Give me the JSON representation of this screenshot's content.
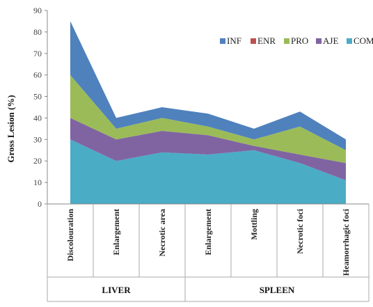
{
  "chart_data": {
    "type": "area",
    "stacked": true,
    "title": "",
    "xlabel": "",
    "ylabel": "Gross Lesion (%)",
    "ylim": [
      0,
      90
    ],
    "yticks": [
      0,
      10,
      20,
      30,
      40,
      50,
      60,
      70,
      80,
      90
    ],
    "grid": false,
    "legend_position": "top-right",
    "categories": [
      "Discolouration",
      "Enlargement",
      "Necrotic area",
      "Enlargement",
      "Mottling",
      "Necrotic foci",
      "Heamorrhagic foci"
    ],
    "groups": [
      {
        "label": "LIVER",
        "categories": [
          0,
          1,
          2
        ]
      },
      {
        "label": "SPLEEN",
        "categories": [
          3,
          4,
          5,
          6
        ]
      }
    ],
    "series": [
      {
        "name": "COM",
        "color": "#4bacc6",
        "values": [
          30,
          20,
          24,
          23,
          25,
          19,
          11
        ]
      },
      {
        "name": "AJE",
        "color": "#8064a2",
        "values": [
          10,
          10,
          10,
          9,
          2,
          4,
          8
        ]
      },
      {
        "name": "ENR",
        "color": "#c0504d",
        "values": [
          0,
          0,
          0,
          0,
          0,
          0,
          0
        ]
      },
      {
        "name": "PRO",
        "color": "#9bbb59",
        "values": [
          20,
          5,
          6,
          4,
          3,
          13,
          6
        ]
      },
      {
        "name": "INF",
        "color": "#4f81bd",
        "values": [
          25,
          5,
          5,
          6,
          5,
          7,
          5
        ]
      }
    ],
    "legend_order": [
      "INF",
      "ENR",
      "PRO",
      "AJE",
      "COM"
    ]
  }
}
